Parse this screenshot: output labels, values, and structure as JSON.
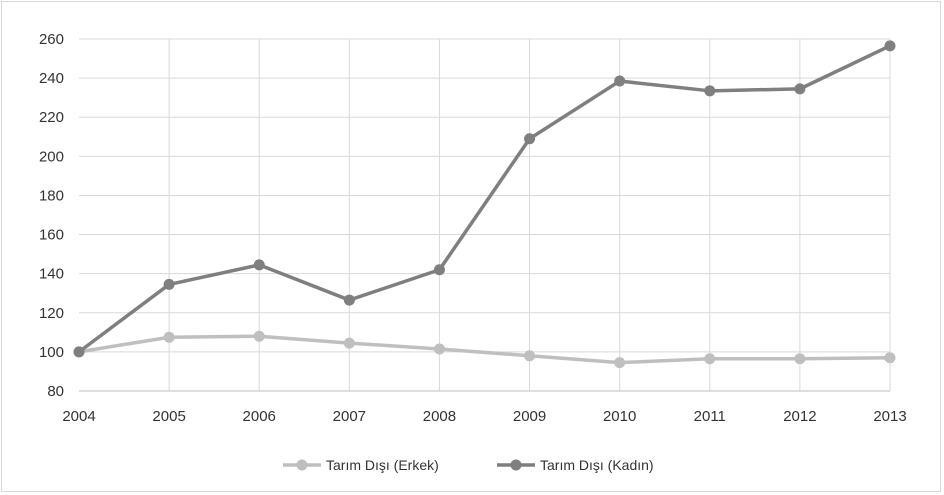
{
  "chart_data": {
    "type": "line",
    "x": [
      "2004",
      "2005",
      "2006",
      "2007",
      "2008",
      "2009",
      "2010",
      "2011",
      "2012",
      "2013"
    ],
    "series": [
      {
        "name": "Tarım Dışı (Erkek)",
        "color": "#bfbfbf",
        "values": [
          100,
          107.5,
          108,
          104.5,
          101.5,
          98,
          94.5,
          96.5,
          96.5,
          97
        ]
      },
      {
        "name": "Tarım Dışı (Kadın)",
        "color": "#7f7f7f",
        "values": [
          100,
          134.5,
          144.5,
          126.5,
          142,
          209,
          238.5,
          233.5,
          234.5,
          256.5
        ]
      }
    ],
    "ylim": [
      80,
      260
    ],
    "yticks": [
      "80",
      "100",
      "120",
      "140",
      "160",
      "180",
      "200",
      "220",
      "240",
      "260"
    ],
    "grid": true,
    "legend": "bottom-center"
  }
}
